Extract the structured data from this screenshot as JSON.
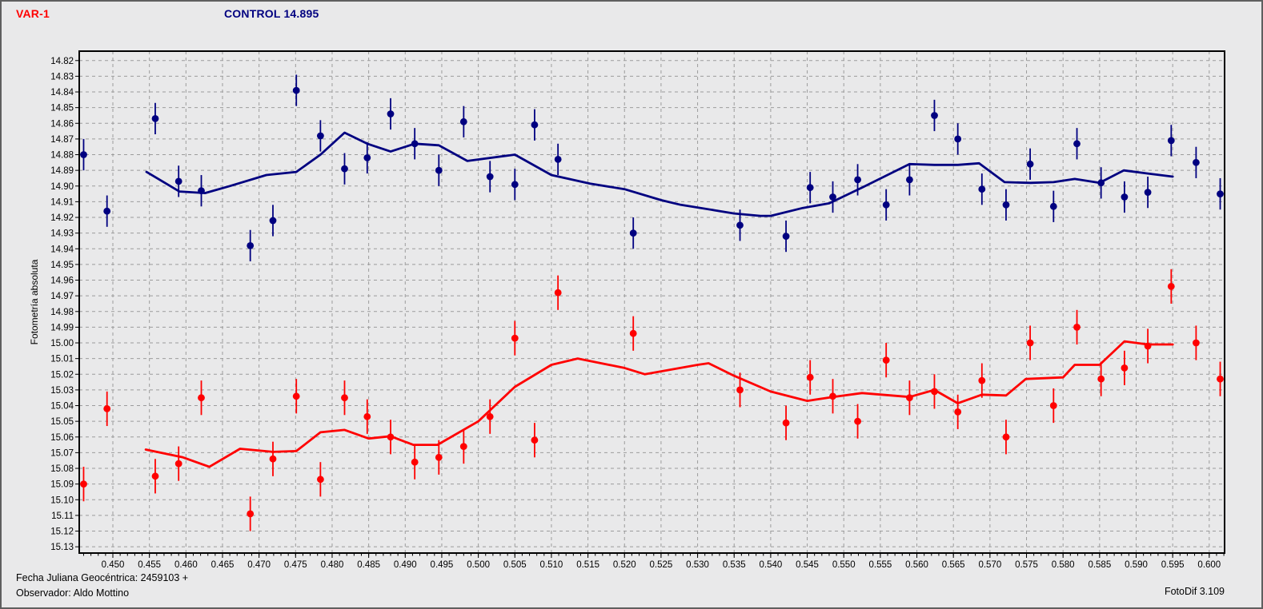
{
  "window": {
    "background": "#e9e9ea",
    "border_color": "#5f5f5f"
  },
  "header": {
    "var_label": "VAR-1",
    "var_color": "#ff0000",
    "control_label": "CONTROL 14.895",
    "control_color": "#000080"
  },
  "footer": {
    "line1": "Fecha Juliana Geocéntrica: 2459103 +",
    "line2": "Observador: Aldo Mottino",
    "right": "FotoDif 3.109"
  },
  "chart_data": {
    "type": "scatter",
    "title": "",
    "xlabel": "",
    "ylabel": "Fotometría absoluta",
    "grid": true,
    "grid_color": "#9c9c9c",
    "frame_color": "#000000",
    "xlim": [
      0.4454,
      0.6021
    ],
    "ylim": [
      14.814,
      15.134
    ],
    "y_axis_inverted_magnitudes": true,
    "x_tick_labels": [
      "0.450",
      "0.455",
      "0.460",
      "0.465",
      "0.470",
      "0.475",
      "0.480",
      "0.485",
      "0.490",
      "0.495",
      "0.500",
      "0.505",
      "0.510",
      "0.515",
      "0.520",
      "0.525",
      "0.530",
      "0.535",
      "0.540",
      "0.545",
      "0.550",
      "0.555",
      "0.560",
      "0.565",
      "0.570",
      "0.575",
      "0.580",
      "0.585",
      "0.590",
      "0.595",
      "0.600"
    ],
    "y_tick_labels": [
      "14.82",
      "14.83",
      "14.84",
      "14.85",
      "14.86",
      "14.87",
      "14.88",
      "14.89",
      "14.90",
      "14.91",
      "14.92",
      "14.93",
      "14.94",
      "14.95",
      "14.96",
      "14.97",
      "14.98",
      "14.99",
      "15.00",
      "15.01",
      "15.02",
      "15.03",
      "15.04",
      "15.05",
      "15.06",
      "15.07",
      "15.08",
      "15.09",
      "15.10",
      "15.11",
      "15.12",
      "15.13"
    ],
    "x_minor_tick_step": 0.001,
    "series": [
      {
        "name": "CONTROL 14.895",
        "color": "#000080",
        "marker": "circle",
        "err": 0.01,
        "points": [
          [
            0.446,
            14.88
          ],
          [
            0.4492,
            14.916
          ],
          [
            0.4558,
            14.857
          ],
          [
            0.459,
            14.897
          ],
          [
            0.4621,
            14.903
          ],
          [
            0.4688,
            14.938
          ],
          [
            0.4719,
            14.922
          ],
          [
            0.4751,
            14.839
          ],
          [
            0.4784,
            14.868
          ],
          [
            0.4817,
            14.889
          ],
          [
            0.4848,
            14.882
          ],
          [
            0.488,
            14.854
          ],
          [
            0.4913,
            14.873
          ],
          [
            0.4946,
            14.89
          ],
          [
            0.498,
            14.859
          ],
          [
            0.5016,
            14.894
          ],
          [
            0.505,
            14.899
          ],
          [
            0.5077,
            14.861
          ],
          [
            0.5109,
            14.883
          ],
          [
            0.5212,
            14.93
          ],
          [
            0.5358,
            14.925
          ],
          [
            0.5421,
            14.932
          ],
          [
            0.5454,
            14.901
          ],
          [
            0.5485,
            14.907
          ],
          [
            0.5519,
            14.896
          ],
          [
            0.5558,
            14.912
          ],
          [
            0.559,
            14.896
          ],
          [
            0.5624,
            14.855
          ],
          [
            0.5656,
            14.87
          ],
          [
            0.5689,
            14.902
          ],
          [
            0.5722,
            14.912
          ],
          [
            0.5755,
            14.886
          ],
          [
            0.5787,
            14.913
          ],
          [
            0.5819,
            14.873
          ],
          [
            0.5852,
            14.898
          ],
          [
            0.5884,
            14.907
          ],
          [
            0.5916,
            14.904
          ],
          [
            0.5948,
            14.871
          ],
          [
            0.5982,
            14.885
          ],
          [
            0.6015,
            14.905
          ]
        ]
      },
      {
        "name": "VAR-1",
        "color": "#ff0000",
        "marker": "circle",
        "err": 0.011,
        "points": [
          [
            0.446,
            15.09
          ],
          [
            0.4492,
            15.042
          ],
          [
            0.4558,
            15.085
          ],
          [
            0.459,
            15.077
          ],
          [
            0.4621,
            15.035
          ],
          [
            0.4688,
            15.109
          ],
          [
            0.4719,
            15.074
          ],
          [
            0.4751,
            15.034
          ],
          [
            0.4784,
            15.087
          ],
          [
            0.4817,
            15.035
          ],
          [
            0.4848,
            15.047
          ],
          [
            0.488,
            15.06
          ],
          [
            0.4913,
            15.076
          ],
          [
            0.4946,
            15.073
          ],
          [
            0.498,
            15.066
          ],
          [
            0.5016,
            15.047
          ],
          [
            0.505,
            14.997
          ],
          [
            0.5077,
            15.062
          ],
          [
            0.5109,
            14.968
          ],
          [
            0.5212,
            14.994
          ],
          [
            0.5358,
            15.03
          ],
          [
            0.5421,
            15.051
          ],
          [
            0.5454,
            15.022
          ],
          [
            0.5485,
            15.034
          ],
          [
            0.5519,
            15.05
          ],
          [
            0.5558,
            15.011
          ],
          [
            0.559,
            15.035
          ],
          [
            0.5624,
            15.031
          ],
          [
            0.5656,
            15.044
          ],
          [
            0.5689,
            15.024
          ],
          [
            0.5722,
            15.06
          ],
          [
            0.5755,
            15.0
          ],
          [
            0.5787,
            15.04
          ],
          [
            0.5819,
            14.99
          ],
          [
            0.5852,
            15.023
          ],
          [
            0.5884,
            15.016
          ],
          [
            0.5916,
            15.002
          ],
          [
            0.5948,
            14.964
          ],
          [
            0.5982,
            15.0
          ],
          [
            0.6015,
            15.023
          ]
        ]
      }
    ],
    "trend_lines": [
      {
        "name": "control-mean-line",
        "color": "#000080",
        "points": [
          [
            0.4546,
            14.891
          ],
          [
            0.4591,
            14.9035
          ],
          [
            0.4626,
            14.9045
          ],
          [
            0.466,
            14.9
          ],
          [
            0.471,
            14.893
          ],
          [
            0.4751,
            14.891
          ],
          [
            0.4784,
            14.88
          ],
          [
            0.4817,
            14.866
          ],
          [
            0.4848,
            14.873
          ],
          [
            0.488,
            14.878
          ],
          [
            0.4913,
            14.873
          ],
          [
            0.4946,
            14.874
          ],
          [
            0.4985,
            14.884
          ],
          [
            0.505,
            14.88
          ],
          [
            0.51,
            14.893
          ],
          [
            0.5153,
            14.8985
          ],
          [
            0.52,
            14.902
          ],
          [
            0.525,
            14.909
          ],
          [
            0.5277,
            14.912
          ],
          [
            0.5324,
            14.9155
          ],
          [
            0.535,
            14.9175
          ],
          [
            0.5386,
            14.919
          ],
          [
            0.54,
            14.919
          ],
          [
            0.5444,
            14.914
          ],
          [
            0.548,
            14.911
          ],
          [
            0.5525,
            14.901
          ],
          [
            0.559,
            14.886
          ],
          [
            0.5624,
            14.8865
          ],
          [
            0.5656,
            14.8865
          ],
          [
            0.5685,
            14.8855
          ],
          [
            0.572,
            14.8975
          ],
          [
            0.5755,
            14.898
          ],
          [
            0.5787,
            14.8975
          ],
          [
            0.5816,
            14.8955
          ],
          [
            0.585,
            14.898
          ],
          [
            0.5883,
            14.89
          ],
          [
            0.5916,
            14.892
          ],
          [
            0.595,
            14.894
          ]
        ]
      },
      {
        "name": "var-mean-line",
        "color": "#ff0000",
        "points": [
          [
            0.4545,
            15.068
          ],
          [
            0.4596,
            15.073
          ],
          [
            0.4632,
            15.079
          ],
          [
            0.4674,
            15.0675
          ],
          [
            0.4719,
            15.0695
          ],
          [
            0.4751,
            15.069
          ],
          [
            0.4784,
            15.057
          ],
          [
            0.4817,
            15.0555
          ],
          [
            0.485,
            15.061
          ],
          [
            0.488,
            15.0595
          ],
          [
            0.4911,
            15.065
          ],
          [
            0.4944,
            15.065
          ],
          [
            0.5,
            15.05
          ],
          [
            0.505,
            15.028
          ],
          [
            0.51,
            15.014
          ],
          [
            0.5136,
            15.01
          ],
          [
            0.52,
            15.016
          ],
          [
            0.5228,
            15.02
          ],
          [
            0.53,
            15.014
          ],
          [
            0.5315,
            15.013
          ],
          [
            0.535,
            15.021
          ],
          [
            0.54,
            15.031
          ],
          [
            0.545,
            15.037
          ],
          [
            0.5485,
            15.0345
          ],
          [
            0.5525,
            15.032
          ],
          [
            0.559,
            15.0345
          ],
          [
            0.5624,
            15.03
          ],
          [
            0.5656,
            15.0385
          ],
          [
            0.5689,
            15.033
          ],
          [
            0.5722,
            15.0335
          ],
          [
            0.5749,
            15.023
          ],
          [
            0.58,
            15.022
          ],
          [
            0.5816,
            15.014
          ],
          [
            0.585,
            15.014
          ],
          [
            0.5884,
            14.999
          ],
          [
            0.5916,
            15.001
          ],
          [
            0.595,
            15.001
          ]
        ]
      }
    ]
  }
}
